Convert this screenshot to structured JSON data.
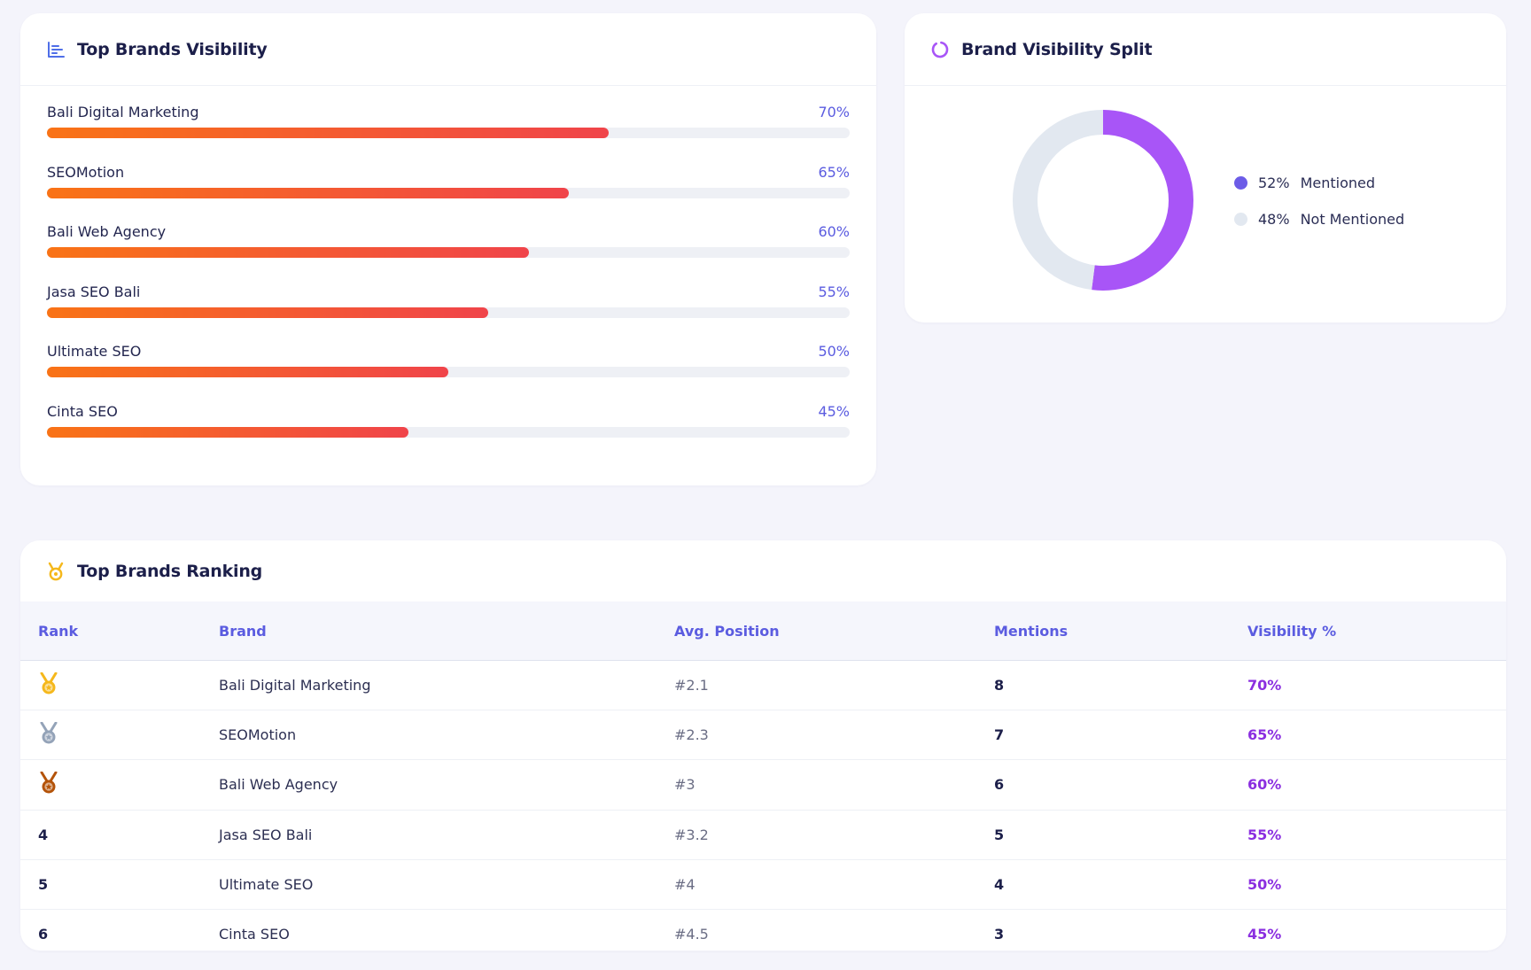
{
  "visibility_card": {
    "title": "Top Brands Visibility",
    "icon": "bar-chart-icon",
    "brands": [
      {
        "name": "Bali Digital Marketing",
        "percent_label": "70%",
        "value": 70
      },
      {
        "name": "SEOMotion",
        "percent_label": "65%",
        "value": 65
      },
      {
        "name": "Bali Web Agency",
        "percent_label": "60%",
        "value": 60
      },
      {
        "name": "Jasa SEO Bali",
        "percent_label": "55%",
        "value": 55
      },
      {
        "name": "Ultimate SEO",
        "percent_label": "50%",
        "value": 50
      },
      {
        "name": "Cinta SEO",
        "percent_label": "45%",
        "value": 45
      }
    ],
    "bar_gradient": [
      "#f97316",
      "#f0444a"
    ],
    "track_color": "#eef0f5"
  },
  "split_card": {
    "title": "Brand Visibility Split",
    "icon": "ring-icon",
    "legend": [
      {
        "value": "52%",
        "label": "Mentioned",
        "color": "#6c5ce7"
      },
      {
        "value": "48%",
        "label": "Not Mentioned",
        "color": "#e2e8f0"
      }
    ]
  },
  "chart_data": {
    "type": "pie",
    "title": "Brand Visibility Split",
    "categories": [
      "Mentioned",
      "Not Mentioned"
    ],
    "values": [
      52,
      48
    ],
    "colors": [
      "#a855f7",
      "#e2e8f0"
    ],
    "legend_position": "right"
  },
  "ranking_card": {
    "title": "Top Brands Ranking",
    "icon": "medal-icon",
    "columns": [
      "Rank",
      "Brand",
      "Avg. Position",
      "Mentions",
      "Visibility %"
    ],
    "rows": [
      {
        "rank": "1",
        "medal": "gold",
        "brand": "Bali Digital Marketing",
        "avg_position": "#2.1",
        "mentions": "8",
        "visibility": "70%"
      },
      {
        "rank": "2",
        "medal": "silver",
        "brand": "SEOMotion",
        "avg_position": "#2.3",
        "mentions": "7",
        "visibility": "65%"
      },
      {
        "rank": "3",
        "medal": "bronze",
        "brand": "Bali Web Agency",
        "avg_position": "#3",
        "mentions": "6",
        "visibility": "60%"
      },
      {
        "rank": "4",
        "medal": "",
        "brand": "Jasa SEO Bali",
        "avg_position": "#3.2",
        "mentions": "5",
        "visibility": "55%"
      },
      {
        "rank": "5",
        "medal": "",
        "brand": "Ultimate SEO",
        "avg_position": "#4",
        "mentions": "4",
        "visibility": "50%"
      },
      {
        "rank": "6",
        "medal": "",
        "brand": "Cinta SEO",
        "avg_position": "#4.5",
        "mentions": "3",
        "visibility": "45%"
      }
    ],
    "medal_colors": {
      "gold": "#f5b81c",
      "silver": "#94a3b8",
      "bronze": "#b45309"
    }
  }
}
